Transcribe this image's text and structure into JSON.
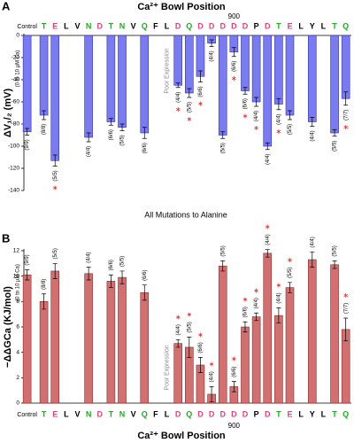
{
  "chart_data": [
    {
      "type": "bar",
      "panel": "A",
      "title": "Ca²⁺ Bowl Position",
      "ylabel": "ΔV₁/₂ (mV)",
      "ylabel_sub": "(0 to 10 µM Ca)",
      "caption": "All Mutations to Alanine",
      "xaxis_position": "top",
      "categories": [
        "Control",
        "T",
        "E",
        "L",
        "V",
        "N",
        "D",
        "T",
        "N",
        "V",
        "Q",
        "F",
        "L",
        "D",
        "Q",
        "D",
        "D",
        "D",
        "D",
        "D",
        "P",
        "D",
        "T",
        "E",
        "L",
        "Y",
        "L",
        "T",
        "Q"
      ],
      "category_colors": [
        "#000000",
        "#22aa22",
        "#e0407a",
        "#000000",
        "#000000",
        "#22aa22",
        "#e0407a",
        "#22aa22",
        "#22aa22",
        "#000000",
        "#22aa22",
        "#000000",
        "#000000",
        "#e0407a",
        "#22aa22",
        "#e0407a",
        "#e0407a",
        "#e0407a",
        "#e0407a",
        "#e0407a",
        "#000000",
        "#e0407a",
        "#22aa22",
        "#e0407a",
        "#000000",
        "#000000",
        "#000000",
        "#22aa22",
        "#22aa22"
      ],
      "values": [
        -87,
        -72,
        -113,
        null,
        null,
        -92,
        null,
        -78,
        -83,
        null,
        -88,
        null,
        null,
        -45,
        -52,
        -37,
        -7,
        -90,
        -15,
        -50,
        -60,
        -100,
        -62,
        -72,
        null,
        -78,
        null,
        -88,
        -57
      ],
      "errors": [
        3,
        4,
        5,
        null,
        null,
        4,
        null,
        3,
        3,
        null,
        5,
        null,
        null,
        2,
        4,
        5,
        3,
        3,
        4,
        3,
        4,
        3,
        5,
        4,
        null,
        4,
        null,
        3,
        6
      ],
      "n_labels": [
        "(9/9)",
        "(8/8)",
        "(5/5)",
        null,
        null,
        "(4/4)",
        null,
        "(6/6)",
        "(5/5)",
        null,
        "(6/6)",
        null,
        null,
        "(4/4)",
        "(5/5)",
        "(6/6)",
        "(4/4)",
        "(5/5)",
        "(6/6)",
        "(6/6)",
        "(4/4)",
        "(4/4)",
        "(4/4)",
        "(5/5)",
        null,
        "(4/4)",
        null,
        "(5/5)",
        "(7/7)"
      ],
      "stars": [
        false,
        false,
        true,
        false,
        false,
        false,
        false,
        false,
        false,
        false,
        false,
        false,
        false,
        true,
        true,
        true,
        false,
        false,
        true,
        true,
        true,
        false,
        true,
        false,
        false,
        false,
        false,
        false,
        true
      ],
      "poor_expression": {
        "label": "Poor Expression",
        "index": 12
      },
      "marker": {
        "label": "900",
        "index": 18
      },
      "color": "#7b7bf0",
      "edge": "#3030a0",
      "ylim": [
        -140,
        0
      ],
      "yticks": [
        0,
        -20,
        -40,
        -60,
        -80,
        -100,
        -120,
        -140
      ]
    },
    {
      "type": "bar",
      "panel": "B",
      "title": "Ca²⁺ Bowl Position",
      "ylabel": "−ΔΔGCa (KJ/mol)",
      "ylabel_sub": "(0 to 10 µM Ca)",
      "xaxis_position": "bottom",
      "categories": [
        "Control",
        "T",
        "E",
        "L",
        "V",
        "N",
        "D",
        "T",
        "N",
        "V",
        "Q",
        "F",
        "L",
        "D",
        "Q",
        "D",
        "D",
        "D",
        "D",
        "D",
        "P",
        "D",
        "T",
        "E",
        "L",
        "Y",
        "L",
        "T",
        "Q"
      ],
      "category_colors": [
        "#000000",
        "#22aa22",
        "#e0407a",
        "#000000",
        "#000000",
        "#22aa22",
        "#e0407a",
        "#22aa22",
        "#22aa22",
        "#000000",
        "#22aa22",
        "#000000",
        "#000000",
        "#e0407a",
        "#22aa22",
        "#e0407a",
        "#e0407a",
        "#e0407a",
        "#e0407a",
        "#e0407a",
        "#000000",
        "#e0407a",
        "#22aa22",
        "#e0407a",
        "#000000",
        "#000000",
        "#000000",
        "#22aa22",
        "#22aa22"
      ],
      "values": [
        10.1,
        8.0,
        10.4,
        null,
        null,
        10.2,
        null,
        9.6,
        9.9,
        null,
        8.7,
        null,
        null,
        4.7,
        4.4,
        3.0,
        0.7,
        10.8,
        1.3,
        6.0,
        6.8,
        11.8,
        6.9,
        9.1,
        null,
        11.3,
        null,
        10.9,
        5.8
      ],
      "errors": [
        0.4,
        0.6,
        0.6,
        null,
        null,
        0.5,
        null,
        0.5,
        0.5,
        null,
        0.6,
        null,
        null,
        0.3,
        0.8,
        0.6,
        0.6,
        0.4,
        0.4,
        0.4,
        0.3,
        0.3,
        0.6,
        0.4,
        null,
        0.6,
        null,
        0.3,
        0.9
      ],
      "n_labels": [
        "(9/9)",
        "(8/8)",
        "(5/5)",
        null,
        null,
        "(4/4)",
        null,
        "(6/6)",
        "(5/5)",
        null,
        "(6/6)",
        null,
        null,
        "(4/4)",
        "(5/5)",
        "(6/6)",
        "(4/4)",
        "(5/5)",
        "(6/6)",
        "(6/6)",
        "(4/4)",
        "(4/4)",
        "(4/4)",
        "(5/5)",
        null,
        "(4/4)",
        null,
        "(5/5)",
        "(7/7)"
      ],
      "stars": [
        false,
        false,
        false,
        false,
        false,
        false,
        false,
        false,
        false,
        false,
        false,
        false,
        false,
        true,
        true,
        true,
        true,
        false,
        true,
        true,
        true,
        true,
        true,
        true,
        false,
        false,
        false,
        false,
        true
      ],
      "poor_expression": {
        "label": "Poor Expression",
        "index": 12
      },
      "marker": {
        "label": "900",
        "index": 18
      },
      "color": "#d07070",
      "edge": "#8b2a2a",
      "ylim": [
        0,
        12
      ],
      "yticks": [
        0,
        2,
        4,
        6,
        8,
        10,
        12
      ]
    }
  ]
}
